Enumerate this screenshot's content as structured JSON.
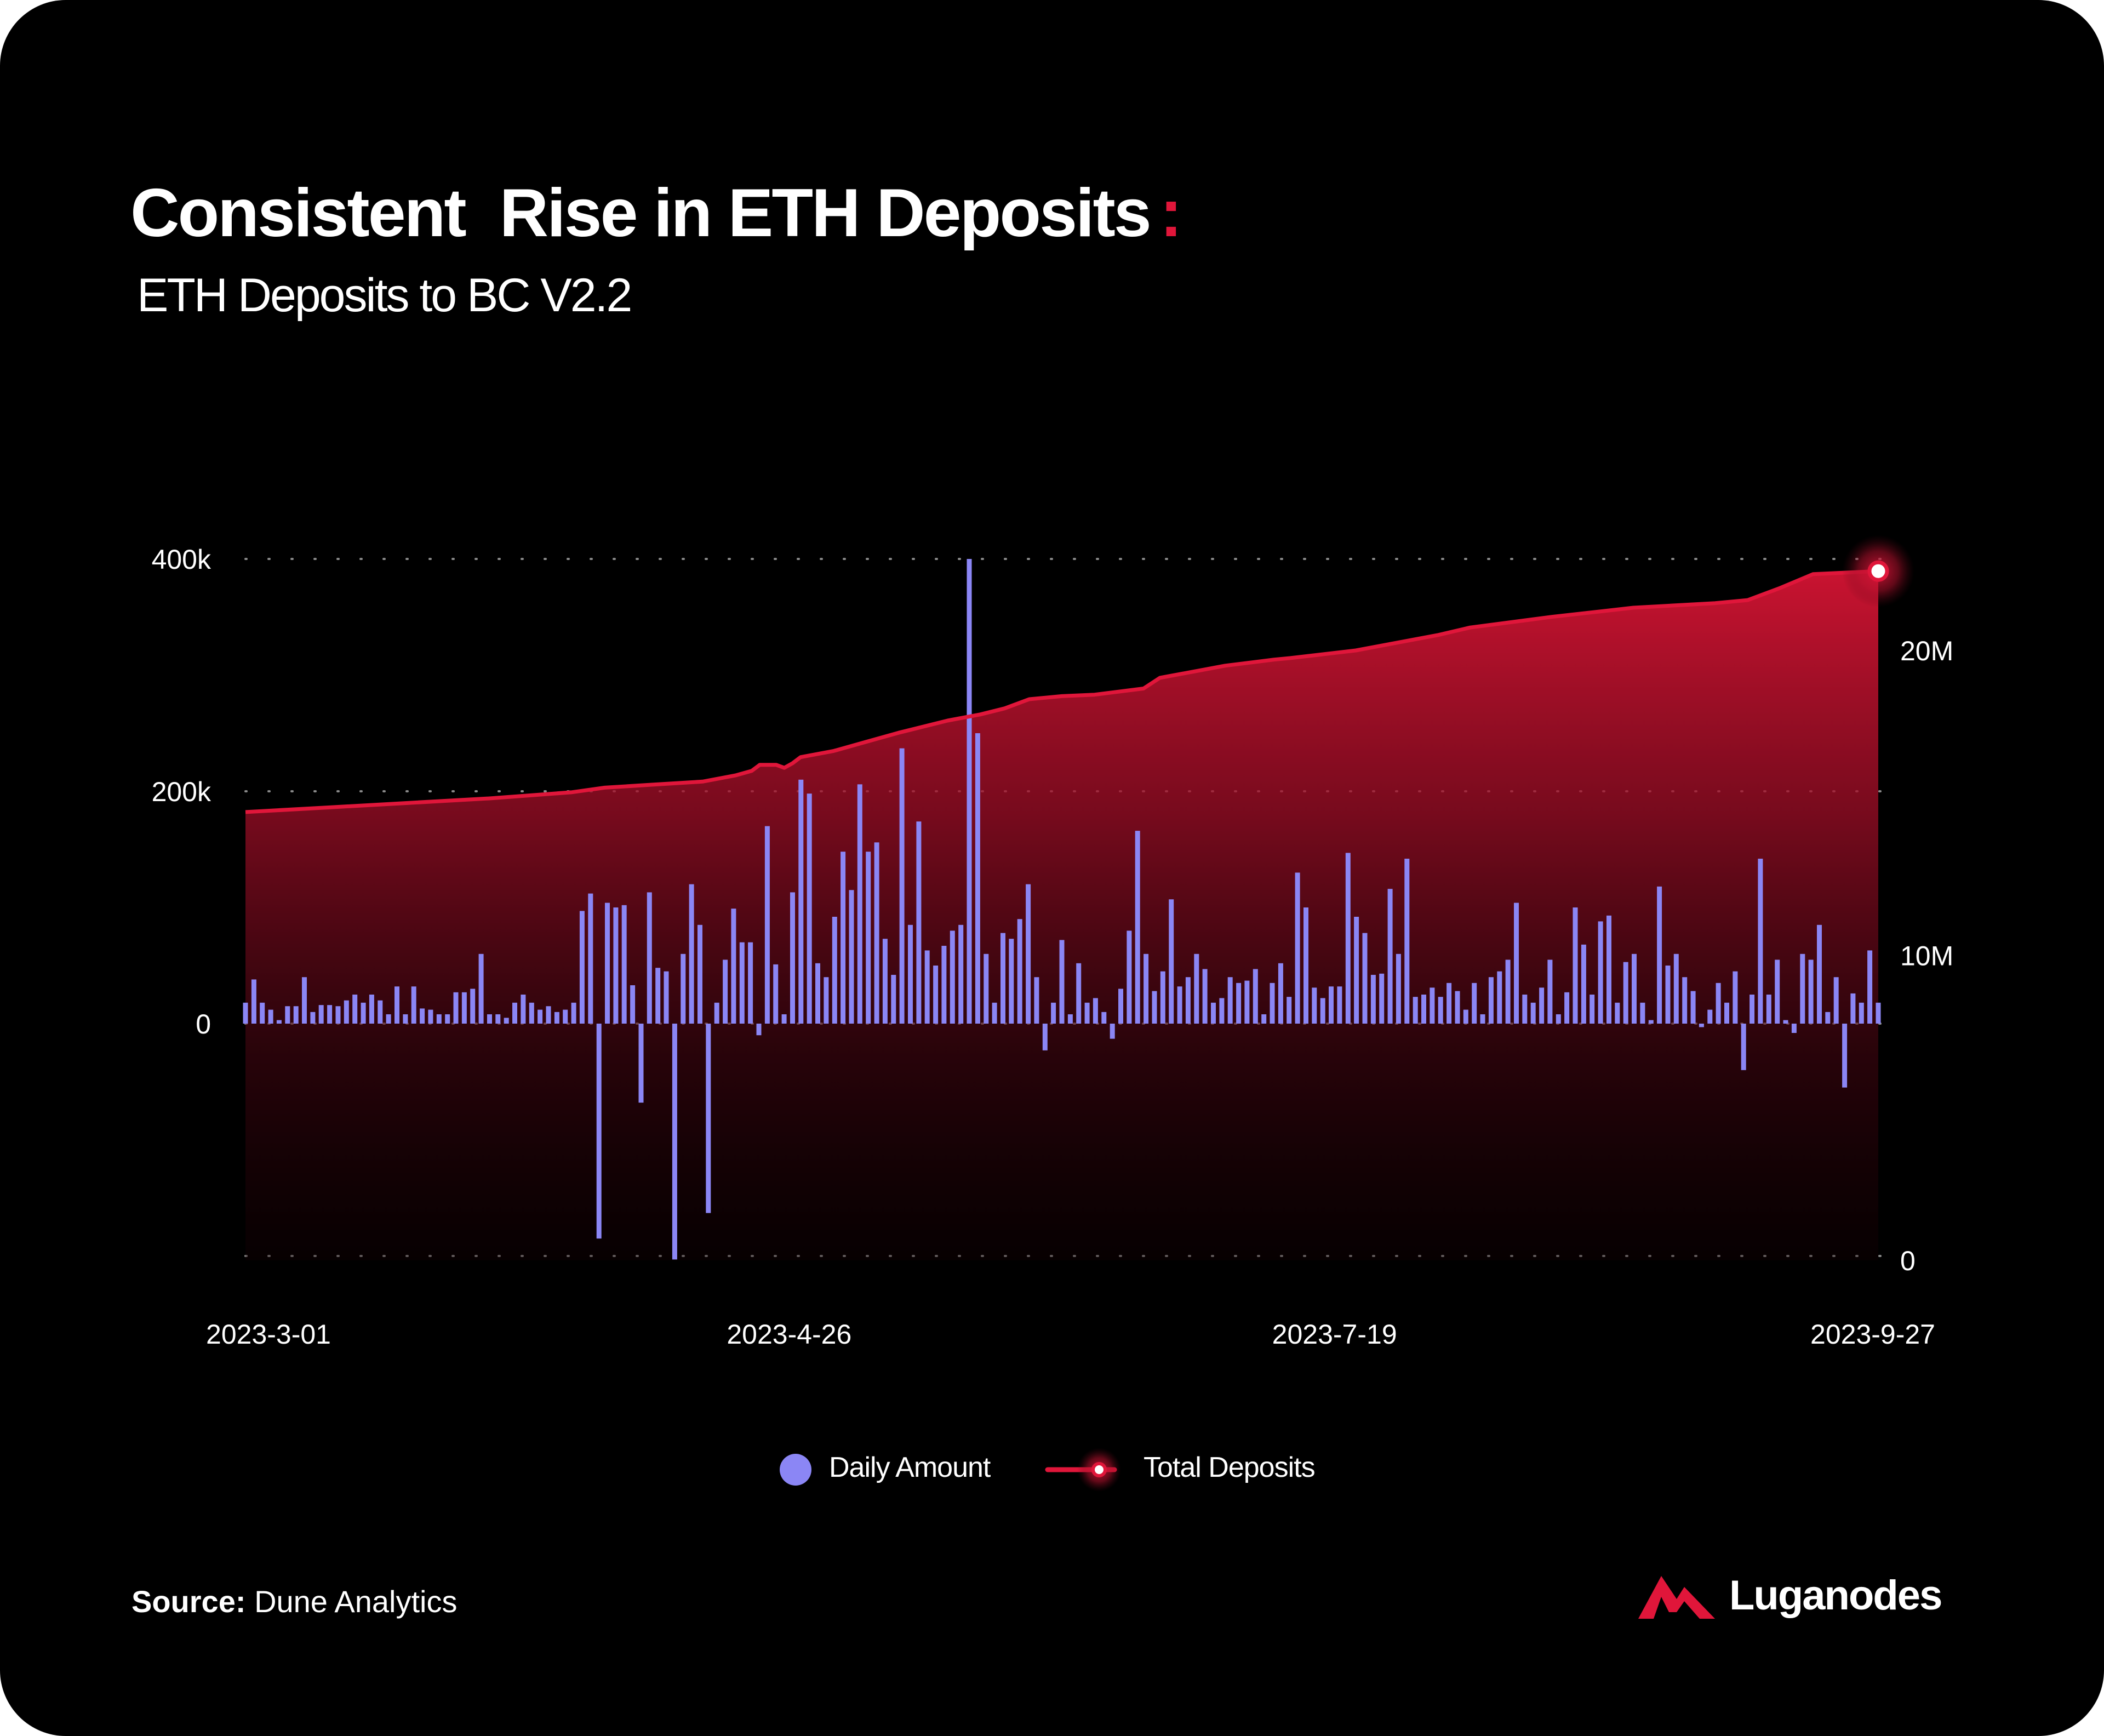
{
  "header": {
    "title": "Consistent  Rise in ETH Deposits",
    "title_colon": ":",
    "subtitle": "ETH Deposits to BC V2.2"
  },
  "legend": {
    "daily_label": "Daily Amount",
    "total_label": "Total Deposits"
  },
  "footer": {
    "source_label": "Source:",
    "source_value": "Dune Analytics",
    "brand": "Luganodes"
  },
  "colors": {
    "background": "#000000",
    "bars": "#8b86f5",
    "line": "#e0163a",
    "accent": "#e0163a"
  },
  "chart_data": {
    "type": "bar+area",
    "title": "ETH Deposits to BC V2.2",
    "x_tick_labels": [
      "2023-3-01",
      "2023-4-26",
      "2023-7-19",
      "2023-9-27"
    ],
    "left_axis": {
      "ticks": [
        "400k",
        "200k",
        "0"
      ],
      "tick_values": [
        400000,
        200000,
        0
      ],
      "ylim": [
        -200000,
        400000
      ]
    },
    "right_axis": {
      "ticks": [
        "20M",
        "10M",
        "0"
      ],
      "tick_values": [
        20000000,
        10000000,
        0
      ],
      "ylim": [
        0,
        23000000
      ]
    },
    "grid": "dotted horizontal lines at 400k, 200k, 0 and -200k",
    "legend_position": "bottom-center",
    "series": [
      {
        "name": "Daily Amount",
        "axis": "left",
        "type": "bar",
        "values": [
          18000,
          38000,
          18000,
          12000,
          3000,
          15000,
          15000,
          40000,
          10000,
          16000,
          16000,
          15000,
          20000,
          25000,
          18000,
          25000,
          20000,
          8000,
          32000,
          8000,
          32000,
          13000,
          12000,
          8000,
          8000,
          27000,
          27000,
          30000,
          60000,
          8000,
          8000,
          5000,
          18000,
          25000,
          18000,
          12000,
          15000,
          10000,
          12000,
          18000,
          97000,
          112000,
          -185000,
          104000,
          100000,
          102000,
          33000,
          -68000,
          113000,
          48000,
          45000,
          -203000,
          60000,
          120000,
          85000,
          -163000,
          18000,
          55000,
          99000,
          70000,
          70000,
          -10000,
          170000,
          51000,
          8000,
          113000,
          210000,
          198000,
          52000,
          40000,
          92000,
          148000,
          115000,
          206000,
          148000,
          156000,
          73000,
          42000,
          237000,
          85000,
          174000,
          63000,
          50000,
          67000,
          80000,
          85000,
          400000,
          250000,
          60000,
          18000,
          78000,
          73000,
          90000,
          120000,
          40000,
          -23000,
          18000,
          72000,
          8000,
          52000,
          18000,
          22000,
          10000,
          -13000,
          30000,
          80000,
          166000,
          60000,
          28000,
          45000,
          107000,
          32000,
          40000,
          60000,
          47000,
          18000,
          22000,
          40000,
          35000,
          37000,
          47000,
          8000,
          35000,
          52000,
          23000,
          130000,
          100000,
          31000,
          22000,
          32000,
          32000,
          147000,
          92000,
          78000,
          42000,
          43000,
          116000,
          60000,
          142000,
          23000,
          25000,
          31000,
          23000,
          35000,
          28000,
          12000,
          35000,
          8000,
          40000,
          45000,
          55000,
          104000,
          25000,
          18000,
          31000,
          55000,
          8000,
          27000,
          100000,
          68000,
          25000,
          88000,
          93000,
          18000,
          53000,
          60000,
          18000,
          3000,
          118000,
          50000,
          60000,
          40000,
          28000,
          -3000,
          12000,
          35000,
          18000,
          45000,
          -40000,
          25000,
          142000,
          25000,
          55000,
          3000,
          -8000,
          60000,
          55000,
          85000,
          10000,
          40000,
          -55000,
          26000,
          18000,
          63000,
          18000
        ]
      },
      {
        "name": "Total Deposits",
        "axis": "right",
        "type": "area",
        "x_fraction": [
          0.0,
          0.05,
          0.1,
          0.15,
          0.2,
          0.22,
          0.25,
          0.28,
          0.3,
          0.31,
          0.315,
          0.325,
          0.33,
          0.335,
          0.34,
          0.36,
          0.38,
          0.4,
          0.43,
          0.45,
          0.465,
          0.48,
          0.5,
          0.52,
          0.55,
          0.56,
          0.6,
          0.63,
          0.64,
          0.68,
          0.7,
          0.73,
          0.75,
          0.8,
          0.85,
          0.9,
          0.92,
          0.94,
          0.96,
          0.98,
          1.0
        ],
        "values": [
          14700000,
          14850000,
          15000000,
          15150000,
          15350000,
          15500000,
          15600000,
          15700000,
          15900000,
          16050000,
          16250000,
          16250000,
          16150000,
          16300000,
          16500000,
          16700000,
          17000000,
          17300000,
          17700000,
          17900000,
          18100000,
          18400000,
          18500000,
          18550000,
          18750000,
          19100000,
          19500000,
          19700000,
          19750000,
          20000000,
          20200000,
          20500000,
          20750000,
          21100000,
          21400000,
          21550000,
          21650000,
          22050000,
          22500000,
          22550000,
          22600000
        ]
      }
    ]
  }
}
